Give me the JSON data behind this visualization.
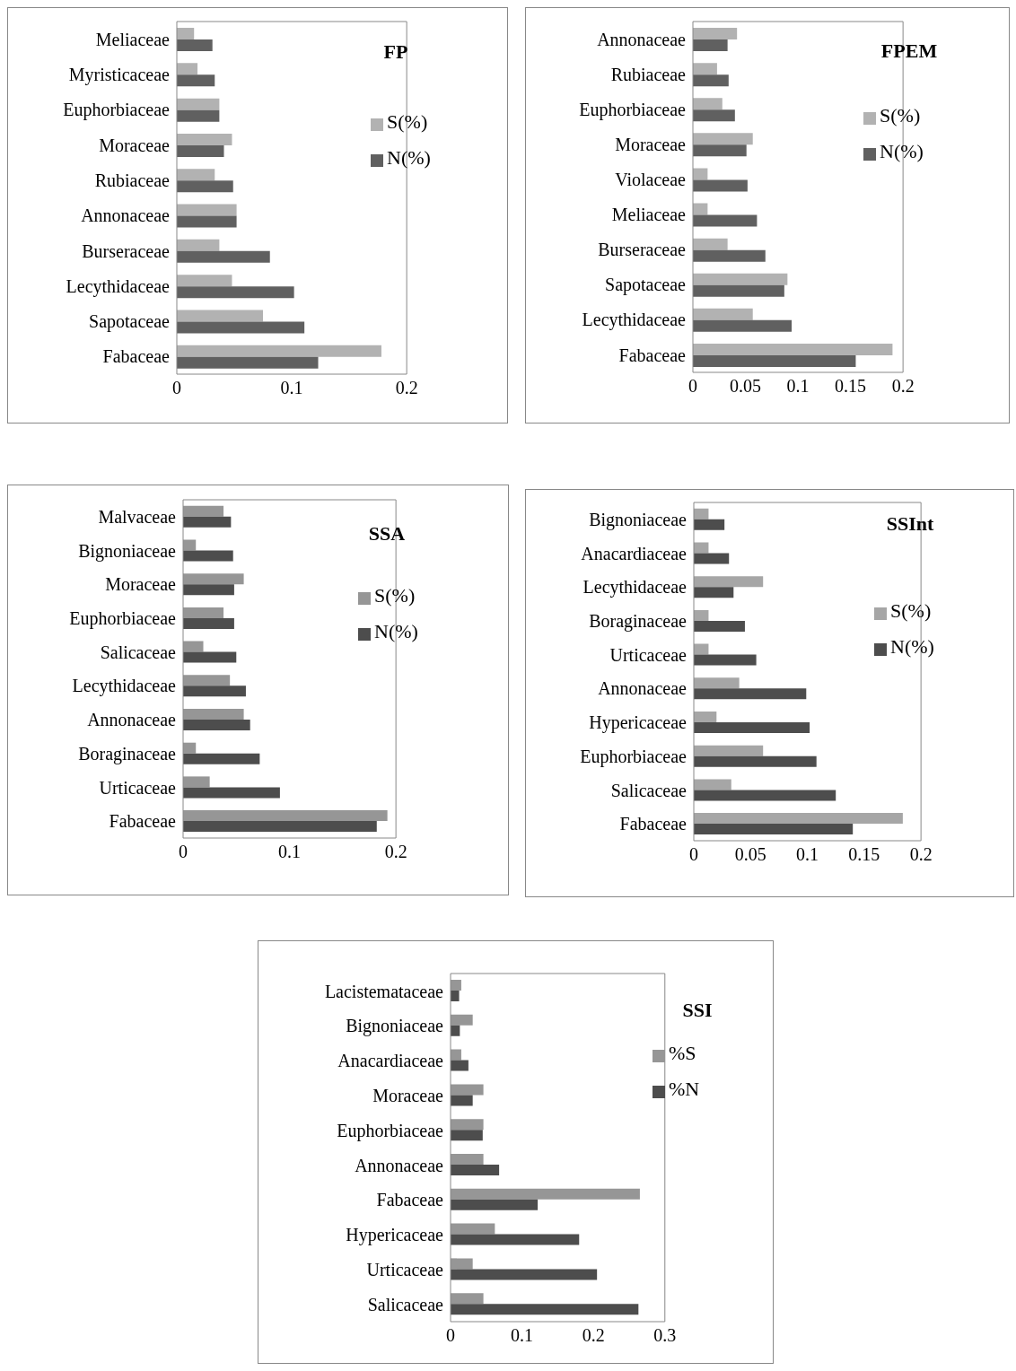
{
  "chart_data": [
    {
      "type": "bar",
      "orientation": "horizontal",
      "title": "FP",
      "legend": "top right",
      "categories": [
        "Meliaceae",
        "Myristicaceae",
        "Euphorbiaceae",
        "Moraceae",
        "Rubiaceae",
        "Annonaceae",
        "Burseraceae",
        "Lecythidaceae",
        "Sapotaceae",
        "Fabaceae"
      ],
      "series": [
        {
          "name": "S(%)",
          "color": "#b2b2b2",
          "values": [
            0.015,
            0.018,
            0.037,
            0.048,
            0.033,
            0.052,
            0.037,
            0.048,
            0.075,
            0.178
          ]
        },
        {
          "name": "N(%)",
          "color": "#606060",
          "values": [
            0.031,
            0.033,
            0.037,
            0.041,
            0.049,
            0.052,
            0.081,
            0.102,
            0.111,
            0.123
          ]
        }
      ],
      "xlim": [
        0,
        0.2
      ],
      "xticks": [
        0,
        0.1,
        0.2
      ]
    },
    {
      "type": "bar",
      "orientation": "horizontal",
      "title": "FPEM",
      "legend": "top right",
      "categories": [
        "Annonaceae",
        "Rubiaceae",
        "Euphorbiaceae",
        "Moraceae",
        "Violaceae",
        "Meliaceae",
        "Burseraceae",
        "Sapotaceae",
        "Lecythidaceae",
        "Fabaceae"
      ],
      "series": [
        {
          "name": "S(%)",
          "color": "#b2b2b2",
          "values": [
            0.042,
            0.023,
            0.028,
            0.057,
            0.014,
            0.014,
            0.033,
            0.09,
            0.057,
            0.19
          ]
        },
        {
          "name": "N(%)",
          "color": "#606060",
          "values": [
            0.033,
            0.034,
            0.04,
            0.051,
            0.052,
            0.061,
            0.069,
            0.087,
            0.094,
            0.155
          ]
        }
      ],
      "xlim": [
        0,
        0.2
      ],
      "xticks": [
        0,
        0.05,
        0.1,
        0.15,
        0.2
      ]
    },
    {
      "type": "bar",
      "orientation": "horizontal",
      "title": "SSA",
      "legend": "top right",
      "categories": [
        "Malvaceae",
        "Bignoniaceae",
        "Moraceae",
        "Euphorbiaceae",
        "Salicaceae",
        "Lecythidaceae",
        "Annonaceae",
        "Boraginaceae",
        "Urticaceae",
        "Fabaceae"
      ],
      "series": [
        {
          "name": "S(%)",
          "color": "#969696",
          "values": [
            0.038,
            0.012,
            0.057,
            0.038,
            0.019,
            0.044,
            0.057,
            0.012,
            0.025,
            0.192
          ]
        },
        {
          "name": "N(%)",
          "color": "#4d4d4d",
          "values": [
            0.045,
            0.047,
            0.048,
            0.048,
            0.05,
            0.059,
            0.063,
            0.072,
            0.091,
            0.182
          ]
        }
      ],
      "xlim": [
        0,
        0.2
      ],
      "xticks": [
        0,
        0.1,
        0.2
      ]
    },
    {
      "type": "bar",
      "orientation": "horizontal",
      "title": "SSInt",
      "legend": "top right",
      "categories": [
        "Bignoniaceae",
        "Anacardiaceae",
        "Lecythidaceae",
        "Boraginaceae",
        "Urticaceae",
        "Annonaceae",
        "Hypericaceae",
        "Euphorbiaceae",
        "Salicaceae",
        "Fabaceae"
      ],
      "series": [
        {
          "name": "S(%)",
          "color": "#a6a6a6",
          "values": [
            0.013,
            0.013,
            0.061,
            0.013,
            0.013,
            0.04,
            0.02,
            0.061,
            0.033,
            0.184
          ]
        },
        {
          "name": "N(%)",
          "color": "#4d4d4d",
          "values": [
            0.027,
            0.031,
            0.035,
            0.045,
            0.055,
            0.099,
            0.102,
            0.108,
            0.125,
            0.14
          ]
        }
      ],
      "xlim": [
        0,
        0.2
      ],
      "xticks": [
        0,
        0.05,
        0.1,
        0.15,
        0.2
      ]
    },
    {
      "type": "bar",
      "orientation": "horizontal",
      "title": "SSI",
      "legend": "top right",
      "categories": [
        "Lacistemataceae",
        "Bignoniaceae",
        "Anacardiaceae",
        "Moraceae",
        "Euphorbiaceae",
        "Annonaceae",
        "Fabaceae",
        "Hypericaceae",
        "Urticaceae",
        "Salicaceae"
      ],
      "series": [
        {
          "name": "%S",
          "color": "#969696",
          "values": [
            0.015,
            0.031,
            0.015,
            0.046,
            0.046,
            0.046,
            0.265,
            0.062,
            0.031,
            0.046
          ]
        },
        {
          "name": "%N",
          "color": "#4d4d4d",
          "values": [
            0.012,
            0.013,
            0.025,
            0.031,
            0.045,
            0.068,
            0.122,
            0.18,
            0.205,
            0.263
          ]
        }
      ],
      "xlim": [
        0,
        0.3
      ],
      "xticks": [
        0,
        0.1,
        0.2,
        0.3
      ]
    }
  ]
}
